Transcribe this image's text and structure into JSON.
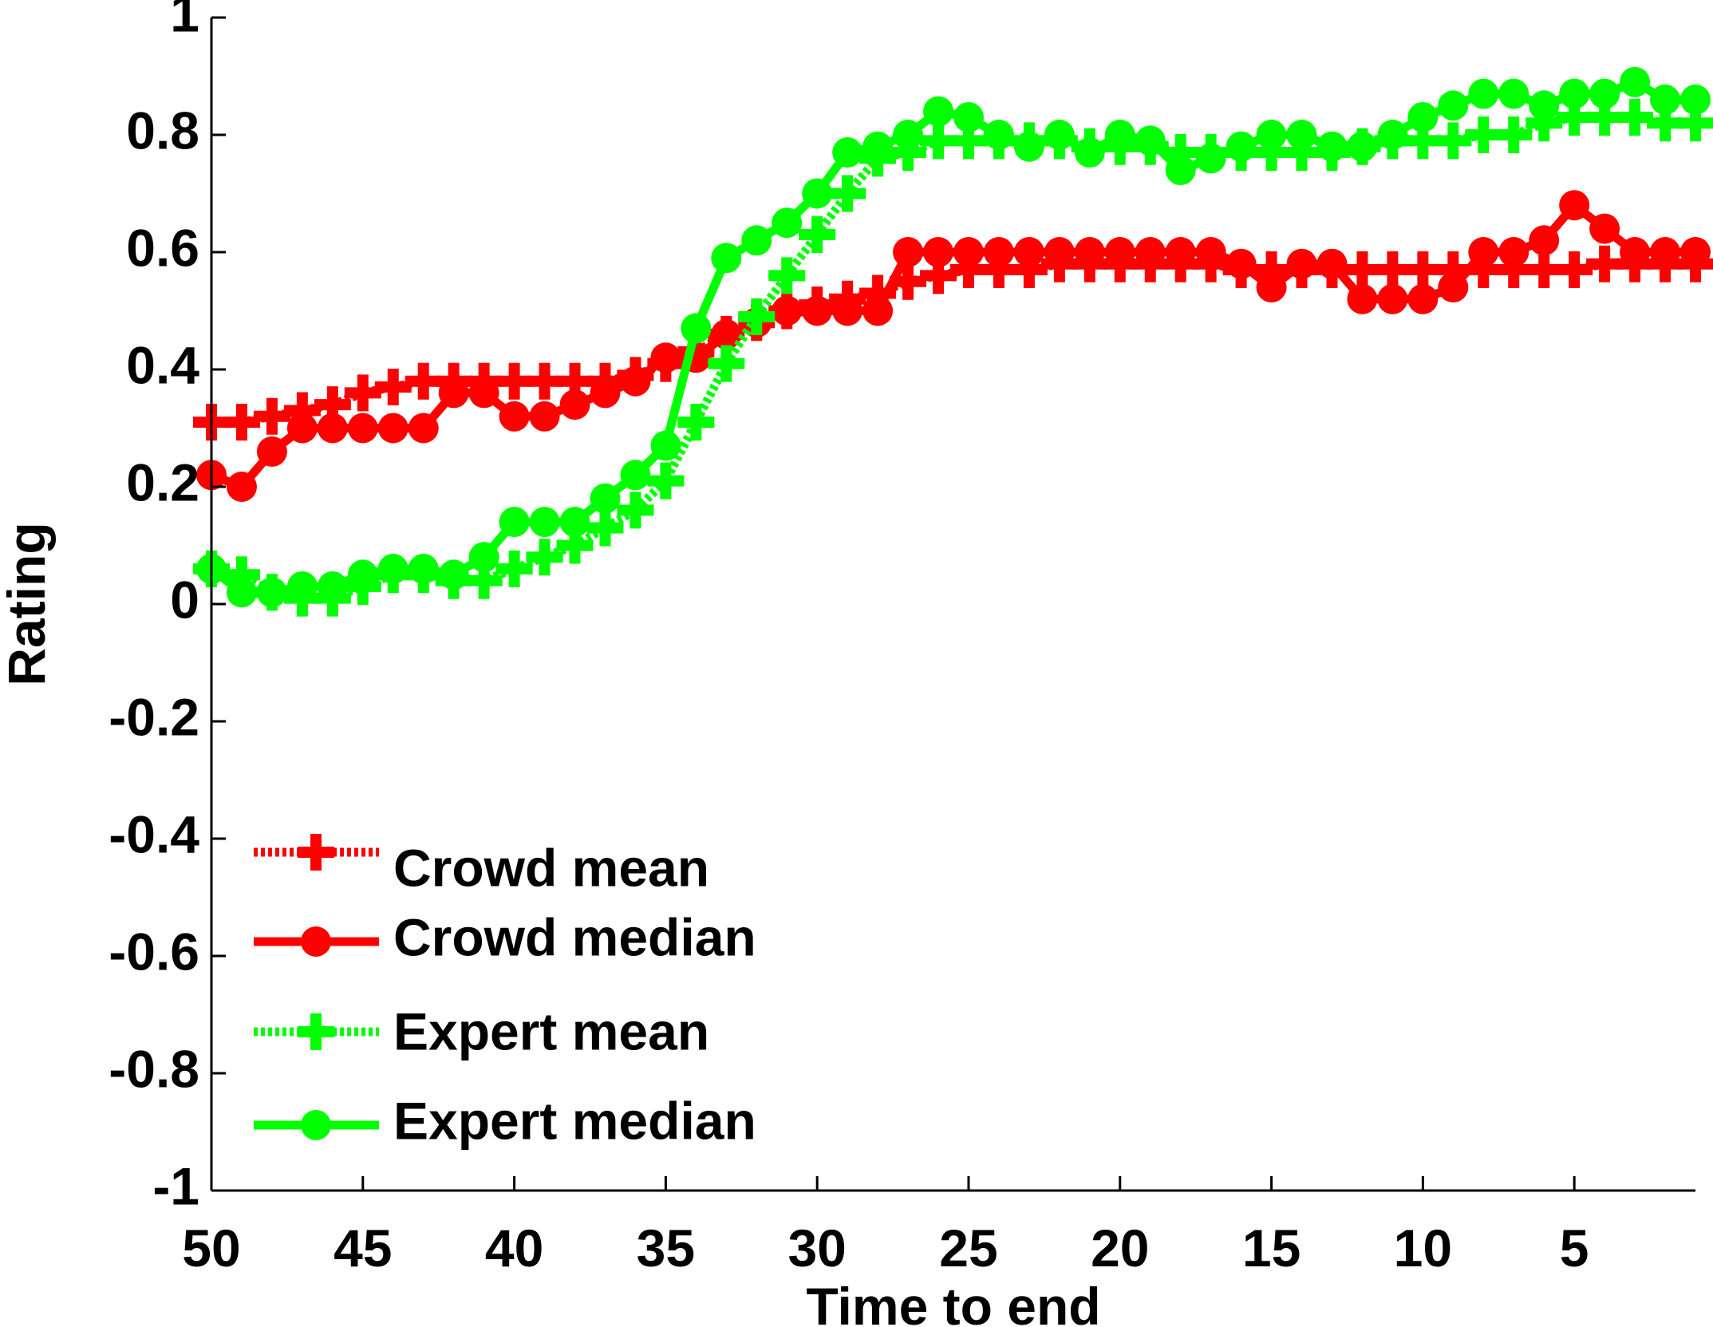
{
  "colors": {
    "crowd": "#ff0000",
    "expert": "#00ff00",
    "axis": "#000000",
    "background": "#ffffff"
  },
  "chart_data": {
    "type": "line",
    "title": "",
    "xlabel": "Time to end",
    "ylabel": "Rating",
    "xlim": [
      50,
      1
    ],
    "ylim": [
      -1,
      1
    ],
    "x_reversed": true,
    "grid": false,
    "legend_position": "bottom-left",
    "x_ticks": [
      50,
      45,
      40,
      35,
      30,
      25,
      20,
      15,
      10,
      5
    ],
    "x_tick_labels": [
      "50",
      "45",
      "40",
      "35",
      "30",
      "25",
      "20",
      "15",
      "10",
      "5"
    ],
    "y_ticks": [
      1,
      0.8,
      0.6,
      0.4,
      0.2,
      0,
      -0.2,
      -0.4,
      -0.6,
      -0.8,
      -1
    ],
    "y_tick_labels": [
      "1",
      "0.8",
      "0.6",
      "0.4",
      "0.2",
      "0",
      "-0.2",
      "-0.4",
      "-0.6",
      "-0.8",
      "-1"
    ],
    "x": [
      50,
      49,
      48,
      47,
      46,
      45,
      44,
      43,
      42,
      41,
      40,
      39,
      38,
      37,
      36,
      35,
      34,
      33,
      32,
      31,
      30,
      29,
      28,
      27,
      26,
      25,
      24,
      23,
      22,
      21,
      20,
      19,
      18,
      17,
      16,
      15,
      14,
      13,
      12,
      11,
      10,
      9,
      8,
      7,
      6,
      5,
      4,
      3,
      2,
      1
    ],
    "series": [
      {
        "name": "Crowd mean",
        "color": "#ff0000",
        "line_style": "dotted",
        "marker": "plus",
        "values": [
          0.31,
          0.31,
          0.32,
          0.33,
          0.34,
          0.36,
          0.37,
          0.38,
          0.38,
          0.38,
          0.38,
          0.38,
          0.38,
          0.38,
          0.39,
          0.41,
          0.43,
          0.46,
          0.48,
          0.5,
          0.51,
          0.52,
          0.53,
          0.55,
          0.56,
          0.57,
          0.57,
          0.57,
          0.58,
          0.58,
          0.58,
          0.58,
          0.58,
          0.58,
          0.57,
          0.57,
          0.57,
          0.57,
          0.57,
          0.57,
          0.57,
          0.57,
          0.57,
          0.57,
          0.57,
          0.57,
          0.58,
          0.58,
          0.58,
          0.58
        ]
      },
      {
        "name": "Crowd median",
        "color": "#ff0000",
        "line_style": "solid",
        "marker": "circle",
        "values": [
          0.22,
          0.2,
          0.26,
          0.3,
          0.3,
          0.3,
          0.3,
          0.3,
          0.36,
          0.36,
          0.32,
          0.32,
          0.34,
          0.36,
          0.38,
          0.42,
          0.42,
          0.46,
          0.48,
          0.5,
          0.5,
          0.5,
          0.5,
          0.6,
          0.6,
          0.6,
          0.6,
          0.6,
          0.6,
          0.6,
          0.6,
          0.6,
          0.6,
          0.6,
          0.58,
          0.54,
          0.58,
          0.58,
          0.52,
          0.52,
          0.52,
          0.54,
          0.6,
          0.6,
          0.62,
          0.68,
          0.64,
          0.6,
          0.6,
          0.6
        ]
      },
      {
        "name": "Expert mean",
        "color": "#00ff00",
        "line_style": "dotted",
        "marker": "plus",
        "values": [
          0.06,
          0.05,
          0.02,
          0.01,
          0.01,
          0.03,
          0.05,
          0.05,
          0.04,
          0.04,
          0.06,
          0.08,
          0.1,
          0.13,
          0.16,
          0.21,
          0.31,
          0.41,
          0.49,
          0.56,
          0.63,
          0.7,
          0.76,
          0.77,
          0.79,
          0.79,
          0.79,
          0.79,
          0.79,
          0.78,
          0.78,
          0.78,
          0.77,
          0.77,
          0.77,
          0.77,
          0.77,
          0.77,
          0.78,
          0.79,
          0.79,
          0.79,
          0.8,
          0.8,
          0.82,
          0.83,
          0.83,
          0.83,
          0.82,
          0.82
        ]
      },
      {
        "name": "Expert median",
        "color": "#00ff00",
        "line_style": "solid",
        "marker": "circle",
        "values": [
          0.06,
          0.02,
          0.02,
          0.03,
          0.03,
          0.05,
          0.06,
          0.06,
          0.05,
          0.08,
          0.14,
          0.14,
          0.14,
          0.18,
          0.22,
          0.27,
          0.47,
          0.59,
          0.62,
          0.65,
          0.7,
          0.77,
          0.78,
          0.8,
          0.84,
          0.83,
          0.8,
          0.78,
          0.8,
          0.77,
          0.8,
          0.79,
          0.74,
          0.76,
          0.78,
          0.8,
          0.8,
          0.78,
          0.78,
          0.8,
          0.83,
          0.85,
          0.87,
          0.87,
          0.85,
          0.87,
          0.87,
          0.89,
          0.86,
          0.86
        ]
      }
    ]
  }
}
